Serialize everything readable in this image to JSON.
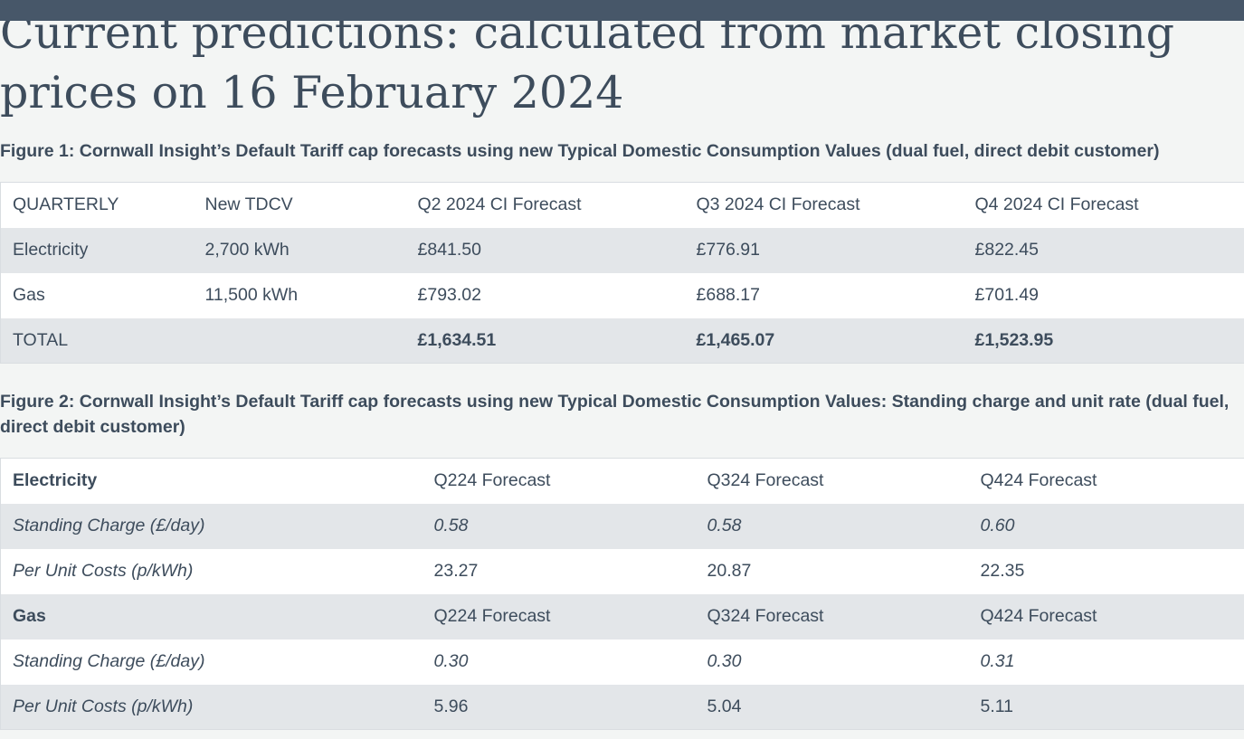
{
  "heading": {
    "line1": "Current predictions: calculated from market closing",
    "line2": "prices on 16 February 2024"
  },
  "figure1": {
    "caption": "Figure 1: Cornwall Insight’s Default Tariff cap forecasts using new Typical Domestic Consumption Values (dual fuel, direct debit customer)",
    "header": [
      "QUARTERLY",
      "New TDCV",
      "Q2 2024 CI Forecast",
      "Q3 2024 CI Forecast",
      "Q4 2024 CI Forecast"
    ],
    "rows": [
      [
        "Electricity",
        "2,700 kWh",
        "£841.50",
        "£776.91",
        "£822.45"
      ],
      [
        "Gas",
        "11,500 kWh",
        "£793.02",
        "£688.17",
        "£701.49"
      ],
      [
        "TOTAL",
        "",
        "£1,634.51",
        "£1,465.07",
        "£1,523.95"
      ]
    ]
  },
  "figure2": {
    "caption": "Figure 2: Cornwall Insight’s Default Tariff cap forecasts using new Typical Domestic Consumption Values: Standing charge and unit rate (dual fuel, direct debit customer)",
    "rows": [
      [
        "Electricity",
        "Q224 Forecast",
        "Q324 Forecast",
        "Q424 Forecast"
      ],
      [
        "Standing Charge (£/day)",
        "0.58",
        "0.58",
        "0.60"
      ],
      [
        "Per Unit Costs (p/kWh)",
        "23.27",
        "20.87",
        "22.35"
      ],
      [
        "Gas",
        "Q224 Forecast",
        "Q324 Forecast",
        "Q424 Forecast"
      ],
      [
        "Standing Charge (£/day)",
        "0.30",
        "0.30",
        "0.31"
      ],
      [
        "Per Unit Costs (p/kWh)",
        "5.96",
        "5.04",
        "5.11"
      ]
    ]
  }
}
